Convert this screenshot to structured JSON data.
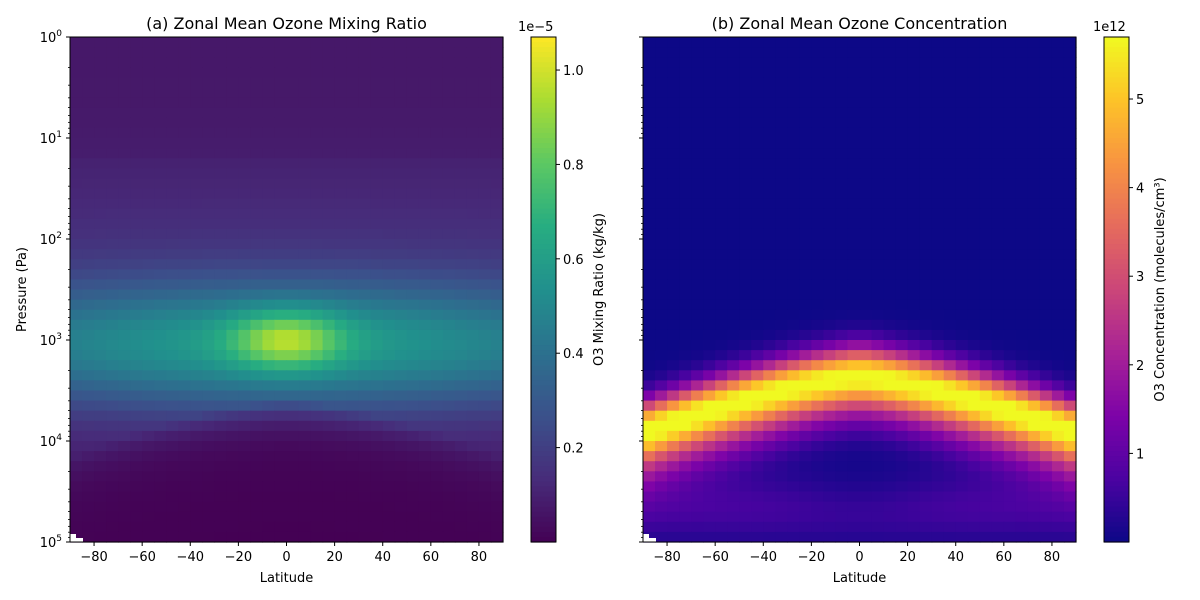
{
  "chart_data": [
    {
      "type": "heatmap",
      "title": "(a) Zonal Mean Ozone Mixing Ratio",
      "xlabel": "Latitude",
      "ylabel": "Pressure (Pa)",
      "x_ticks": [
        "−80",
        "−60",
        "−40",
        "−20",
        "0",
        "20",
        "40",
        "60",
        "80"
      ],
      "x_tick_values": [
        -80,
        -60,
        -40,
        -20,
        0,
        20,
        40,
        60,
        80
      ],
      "xlim": [
        -90,
        90
      ],
      "y_scale": "log",
      "y_inverted": true,
      "ylim": [
        1,
        100000
      ],
      "y_ticks": [
        {
          "base": "10",
          "exp": "0"
        },
        {
          "base": "10",
          "exp": "1"
        },
        {
          "base": "10",
          "exp": "2"
        },
        {
          "base": "10",
          "exp": "3"
        },
        {
          "base": "10",
          "exp": "4"
        },
        {
          "base": "10",
          "exp": "5"
        }
      ],
      "colormap": "viridis",
      "colorbar": {
        "label": "O3 Mixing Ratio (kg/kg)",
        "offset_text": "1e−5",
        "ticks": [
          "0.2",
          "0.4",
          "0.6",
          "0.8",
          "1.0"
        ],
        "tick_values": [
          0.2,
          0.4,
          0.6,
          0.8,
          1.0
        ],
        "range": [
          0.0,
          1.07
        ]
      },
      "field_summary": {
        "peak_value": 1.07,
        "peak_location": {
          "latitude": 0,
          "pressure_pa": 1000
        },
        "upper_atmosphere_value": 0.05,
        "lower_atmosphere_value": 0.02
      }
    },
    {
      "type": "heatmap",
      "title": "(b) Zonal Mean Ozone Concentration",
      "xlabel": "Latitude",
      "ylabel": "",
      "x_ticks": [
        "−80",
        "−60",
        "−40",
        "−20",
        "0",
        "20",
        "40",
        "60",
        "80"
      ],
      "x_tick_values": [
        -80,
        -60,
        -40,
        -20,
        0,
        20,
        40,
        60,
        80
      ],
      "xlim": [
        -90,
        90
      ],
      "y_scale": "log",
      "y_inverted": true,
      "ylim": [
        1,
        100000
      ],
      "colormap": "plasma",
      "colorbar": {
        "label": "O3 Concentration (molecules/cm³)",
        "offset_text": "1e12",
        "ticks": [
          "1",
          "2",
          "3",
          "4",
          "5"
        ],
        "tick_values": [
          1,
          2,
          3,
          4,
          5
        ],
        "range": [
          0.0,
          5.7
        ]
      },
      "field_summary": {
        "peak_value": 5.7,
        "equator_peak_pressure_pa": 2000,
        "pole_peak_pressure_pa": 6000,
        "low_region_center": {
          "latitude": 0,
          "pressure_pa": 20000
        }
      }
    }
  ]
}
